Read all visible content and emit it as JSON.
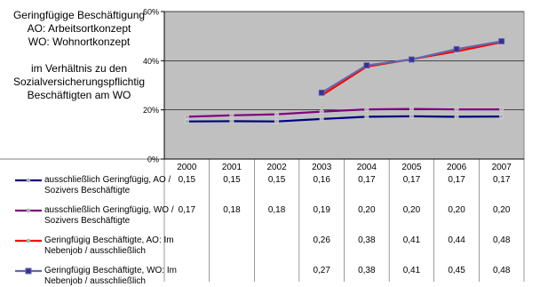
{
  "caption": {
    "line1": "Geringfügige Beschäftigung",
    "line2": "AO: Arbeitsortkonzept",
    "line3": "WO: Wohnortkonzept",
    "line4": "im Verhältnis zu den",
    "line5": "Sozialversicherungspflichtig",
    "line6": "Beschäftigten am WO"
  },
  "chart_data": {
    "type": "line",
    "title": "",
    "xlabel": "",
    "ylabel": "",
    "x": [
      "2000",
      "2001",
      "2002",
      "2003",
      "2004",
      "2005",
      "2006",
      "2007"
    ],
    "ylim": [
      0,
      60
    ],
    "yticks": [
      {
        "value": 0,
        "label": "0%"
      },
      {
        "value": 20,
        "label": "20%"
      },
      {
        "value": 40,
        "label": "40%"
      },
      {
        "value": 60,
        "label": "60%"
      }
    ],
    "grid": true,
    "legend_position": "bottom-table",
    "series": [
      {
        "label_line1": "ausschließlich Geringfügig, AO /",
        "label_line2": "Sozivers Beschäftigte",
        "color": "#000080",
        "marker_color": "#b0b0b0",
        "values": [
          15.3,
          15.4,
          15.3,
          16.3,
          17.2,
          17.4,
          17.2,
          17.3
        ],
        "table": [
          "0,15",
          "0,15",
          "0,15",
          "0,16",
          "0,17",
          "0,17",
          "0,17",
          "0,17"
        ]
      },
      {
        "label_line1": "ausschließlich Geringfügig, WO /",
        "label_line2": "Sozivers Beschäftigte",
        "color": "#800080",
        "marker_color": "#b0b0b0",
        "values": [
          17.2,
          17.8,
          18.2,
          19.3,
          20.2,
          20.4,
          20.2,
          20.2
        ],
        "table": [
          "0,17",
          "0,18",
          "0,18",
          "0,19",
          "0,20",
          "0,20",
          "0,20",
          "0,20"
        ]
      },
      {
        "label_line1": "Geringfügig Beschäftigte, AO: Im",
        "label_line2": "Nebenjob / ausschließlich",
        "color": "#ff0000",
        "marker_color": "#b0b0b0",
        "values": [
          null,
          null,
          null,
          25.9,
          37.6,
          40.6,
          43.8,
          47.5
        ],
        "table": [
          "",
          "",
          "",
          "0,26",
          "0,38",
          "0,41",
          "0,44",
          "0,48"
        ]
      },
      {
        "label_line1": "Geringfügig Beschäftigte, WO: Im",
        "label_line2": "Nebenjob / ausschließlich",
        "color": "#6666aa",
        "marker_color": "#333399",
        "values": [
          null,
          null,
          null,
          27.0,
          38.1,
          40.5,
          44.7,
          47.9
        ],
        "table": [
          "",
          "",
          "",
          "0,27",
          "0,38",
          "0,41",
          "0,45",
          "0,48"
        ]
      }
    ]
  }
}
